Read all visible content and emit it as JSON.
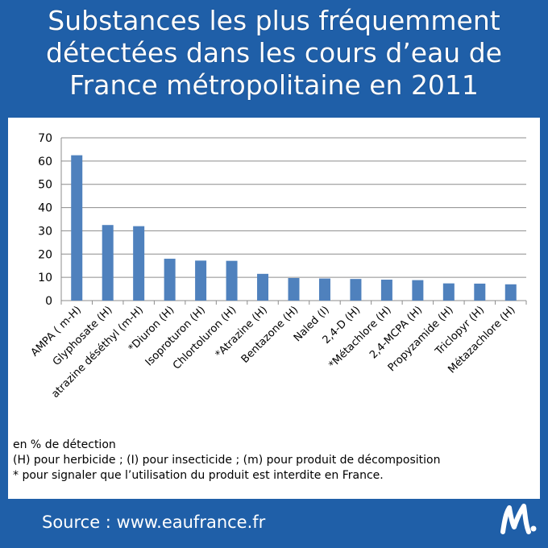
{
  "title_lines": [
    "Substances les plus fréquemment",
    "détectées dans les cours d’eau de",
    "France métropolitaine en 2011"
  ],
  "notes": [
    "en % de détection",
    "(H) pour herbicide ; (I) pour insecticide ; (m) pour produit de décomposition",
    "* pour signaler que l’utilisation du produit est interdite en France."
  ],
  "source": "Source : www.eaufrance.fr",
  "colors": {
    "background": "#1f5fa8",
    "bar": "#4f81bd"
  },
  "chart_data": {
    "type": "bar",
    "categories": [
      "AMPA ( m-H)",
      "Glyphosate (H)",
      "atrazine déséthyl (m-H)",
      "*Diuron (H)",
      "Isoproturon (H)",
      "Chlortoluron (H)",
      "*Atrazine (H)",
      "Bentazone (H)",
      "Naled (I)",
      "2,4-D (H)",
      "*Métachlore (H)",
      "2,4-MCPA (H)",
      "Propyzamide (H)",
      "Triclopyr (H)",
      "Métazachlore (H)"
    ],
    "values": [
      62.5,
      32.5,
      32,
      18,
      17.2,
      17.1,
      11.5,
      9.7,
      9.5,
      9.3,
      9,
      8.8,
      7.4,
      7.3,
      7
    ],
    "yticks": [
      0,
      10,
      20,
      30,
      40,
      50,
      60,
      70
    ],
    "ylim": [
      0,
      70
    ],
    "grid": true
  }
}
